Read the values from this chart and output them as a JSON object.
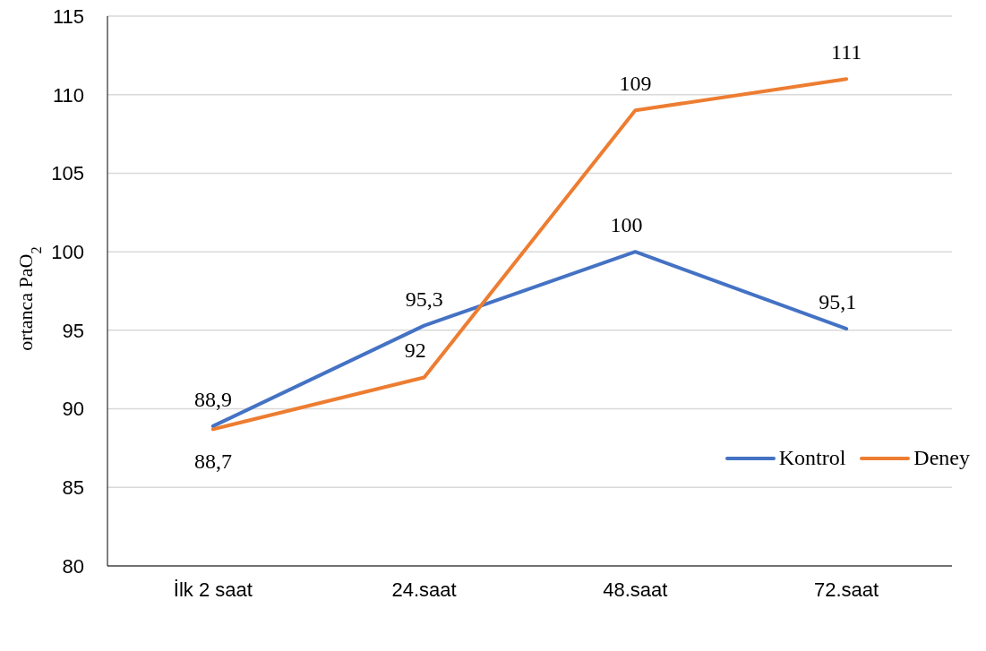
{
  "chart_data": {
    "type": "line",
    "ylabel": "ortanca PaO$_{2}$",
    "categories": [
      "İlk 2 saat",
      "24.saat",
      "48.saat",
      "72.saat"
    ],
    "series": [
      {
        "name": "Kontrol",
        "color": "#4472c4",
        "values": [
          88.9,
          95.3,
          100,
          95.1
        ],
        "value_labels": [
          "88,9",
          "95,3",
          "100",
          "95,1"
        ]
      },
      {
        "name": "Deney",
        "color": "#ed7d31",
        "values": [
          88.7,
          92,
          109,
          111
        ],
        "value_labels": [
          "88,7",
          "92",
          "109",
          "111"
        ]
      }
    ],
    "ylim": [
      80,
      115
    ],
    "yticks": [
      80,
      85,
      90,
      95,
      100,
      105,
      110,
      115
    ],
    "grid": "y",
    "legend": "right",
    "marker": "none",
    "line_style": "solid"
  }
}
